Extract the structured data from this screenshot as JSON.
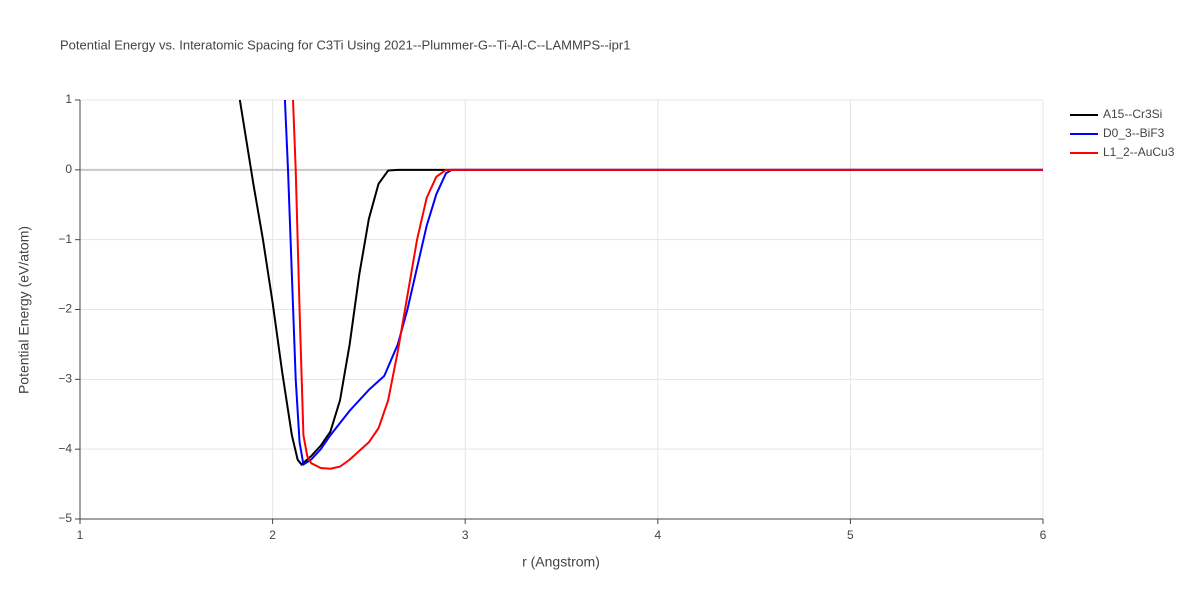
{
  "chart_data": {
    "type": "line",
    "title": "Potential Energy vs. Interatomic Spacing for C3Ti Using 2021--Plummer-G--Ti-Al-C--LAMMPS--ipr1",
    "x_label": "r (Angstrom)",
    "y_label": "Potential Energy (eV/atom)",
    "xlim": [
      1,
      6
    ],
    "xticks": [
      1,
      2,
      3,
      4,
      5,
      6
    ],
    "ylim": [
      -5,
      1
    ],
    "yticks": [
      {
        "value": -5,
        "label": "−5"
      },
      {
        "value": -4,
        "label": "−4"
      },
      {
        "value": -3,
        "label": "−3"
      },
      {
        "value": -2,
        "label": "−2"
      },
      {
        "value": -1,
        "label": "−1"
      },
      0,
      1
    ],
    "grid": true,
    "legend": "right",
    "series": [
      {
        "name": "A15--Cr3Si",
        "color": "#000000",
        "x": [
          1.83,
          1.9,
          1.95,
          2.0,
          2.05,
          2.1,
          2.13,
          2.15,
          2.2,
          2.25,
          2.3,
          2.35,
          2.4,
          2.45,
          2.5,
          2.55,
          2.6,
          2.65,
          6
        ],
        "values": [
          1.0,
          -0.2,
          -1.0,
          -1.9,
          -2.9,
          -3.8,
          -4.15,
          -4.22,
          -4.1,
          -3.95,
          -3.75,
          -3.3,
          -2.5,
          -1.5,
          -0.7,
          -0.2,
          -0.01,
          0,
          0
        ]
      },
      {
        "name": "D0_3--BiF3",
        "color": "#0000ff",
        "x": [
          2.064,
          2.08,
          2.1,
          2.12,
          2.14,
          2.16,
          2.2,
          2.25,
          2.3,
          2.4,
          2.5,
          2.58,
          2.65,
          2.7,
          2.75,
          2.8,
          2.85,
          2.9,
          2.93,
          6
        ],
        "values": [
          1.0,
          0,
          -1.5,
          -3.0,
          -3.9,
          -4.22,
          -4.15,
          -4.0,
          -3.8,
          -3.45,
          -3.15,
          -2.95,
          -2.5,
          -2.0,
          -1.4,
          -0.8,
          -0.35,
          -0.05,
          0,
          0
        ]
      },
      {
        "name": "L1_2--AuCu3",
        "color": "#ff0000",
        "x": [
          2.106,
          2.12,
          2.14,
          2.16,
          2.18,
          2.2,
          2.25,
          2.3,
          2.35,
          2.4,
          2.5,
          2.55,
          2.6,
          2.65,
          2.7,
          2.75,
          2.8,
          2.85,
          2.9,
          6
        ],
        "values": [
          1.0,
          0,
          -2.0,
          -3.8,
          -4.1,
          -4.2,
          -4.27,
          -4.28,
          -4.25,
          -4.15,
          -3.9,
          -3.7,
          -3.3,
          -2.6,
          -1.8,
          -1.0,
          -0.4,
          -0.1,
          0,
          0
        ]
      }
    ]
  }
}
